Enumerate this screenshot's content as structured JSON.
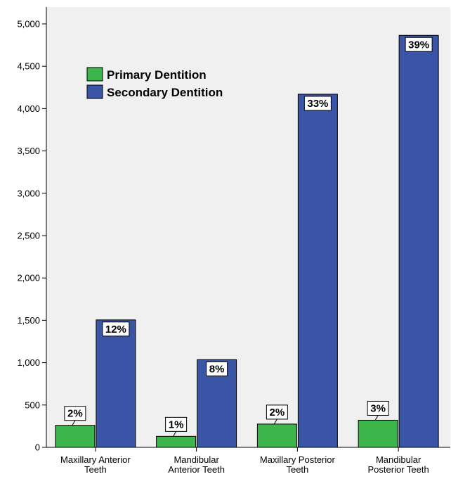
{
  "chart_data": {
    "type": "bar",
    "categories": [
      [
        "Maxillary Anterior",
        "Teeth"
      ],
      [
        "Mandibular",
        "Anterior Teeth"
      ],
      [
        "Maxillary Posterior",
        "Teeth"
      ],
      [
        "Mandibular",
        "Posterior Teeth"
      ]
    ],
    "series": [
      {
        "name": "Primary Dentition",
        "color": "#3cb54a",
        "values": [
          260,
          130,
          275,
          320
        ],
        "data_labels": [
          "2%",
          "1%",
          "2%",
          "3%"
        ]
      },
      {
        "name": "Secondary Dentition",
        "color": "#3b55a6",
        "values": [
          1505,
          1035,
          4170,
          4865
        ],
        "data_labels": [
          "12%",
          "8%",
          "33%",
          "39%"
        ]
      }
    ],
    "ylim": [
      0,
      5200
    ],
    "yticks": [
      0,
      500,
      1000,
      1500,
      2000,
      2500,
      3000,
      3500,
      4000,
      4500,
      5000
    ],
    "ytick_labels": [
      "0",
      "500",
      "1,000",
      "1,500",
      "2,000",
      "2,500",
      "3,000",
      "3,500",
      "4,000",
      "4,500",
      "5,000"
    ],
    "title": "",
    "xlabel": "",
    "ylabel": "",
    "grid": false,
    "legend": "upper-left",
    "plot_background": "#f0f0f0"
  }
}
